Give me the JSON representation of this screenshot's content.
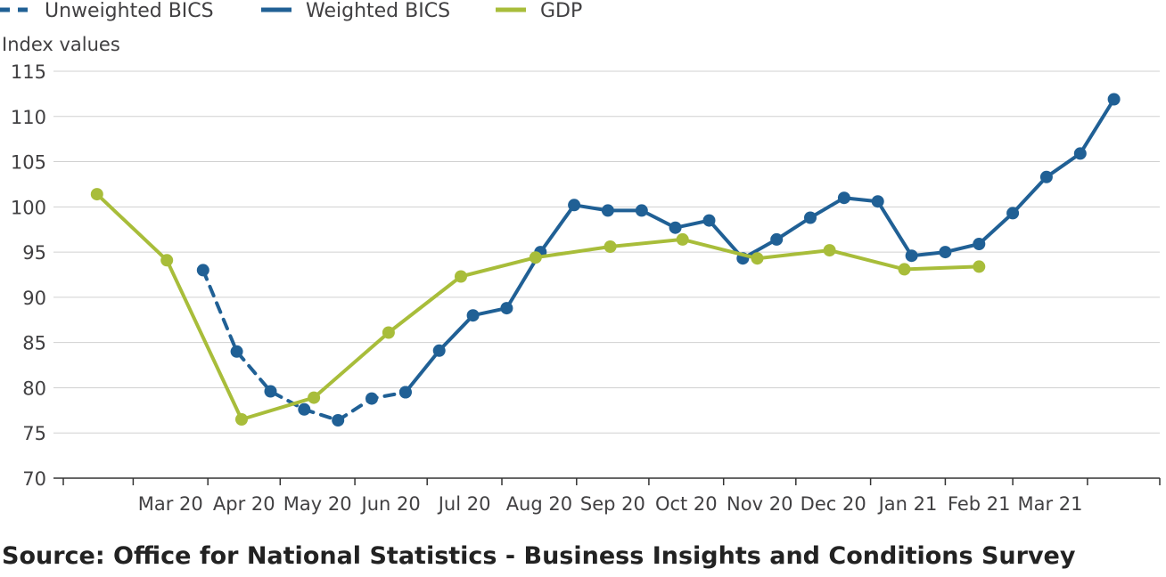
{
  "chart_data": {
    "type": "line",
    "title": "",
    "xlabel": "",
    "ylabel": "Index values",
    "ylim": [
      70,
      115
    ],
    "yticks": [
      70,
      75,
      80,
      85,
      90,
      95,
      100,
      105,
      110,
      115
    ],
    "grid": "horizontal",
    "legend_position": "top-left",
    "x_ticks": [
      "Mar 20",
      "Apr 20",
      "May 20",
      "Jun 20",
      "Jul 20",
      "Aug 20",
      "Sep 20",
      "Oct 20",
      "Nov 20",
      "Dec 20",
      "Jan 21",
      "Feb 21",
      "Mar 21"
    ],
    "series": [
      {
        "name": "Unweighted BICS",
        "color": "#206095",
        "style": "dashed",
        "points": [
          {
            "x": "2020-03-30",
            "y": 93.0
          },
          {
            "x": "2020-04-13",
            "y": 84.0
          },
          {
            "x": "2020-04-27",
            "y": 79.6
          },
          {
            "x": "2020-05-11",
            "y": 77.6
          },
          {
            "x": "2020-05-25",
            "y": 76.4
          },
          {
            "x": "2020-06-08",
            "y": 78.8
          },
          {
            "x": "2020-06-22",
            "y": 79.5
          }
        ]
      },
      {
        "name": "Weighted BICS",
        "color": "#206095",
        "style": "solid",
        "points": [
          {
            "x": "2020-06-22",
            "y": 79.5
          },
          {
            "x": "2020-07-06",
            "y": 84.1
          },
          {
            "x": "2020-07-20",
            "y": 88.0
          },
          {
            "x": "2020-08-03",
            "y": 88.8
          },
          {
            "x": "2020-08-17",
            "y": 95.0
          },
          {
            "x": "2020-08-31",
            "y": 100.2
          },
          {
            "x": "2020-09-14",
            "y": 99.6
          },
          {
            "x": "2020-09-28",
            "y": 99.6
          },
          {
            "x": "2020-10-12",
            "y": 97.7
          },
          {
            "x": "2020-10-26",
            "y": 98.5
          },
          {
            "x": "2020-11-09",
            "y": 94.3
          },
          {
            "x": "2020-11-23",
            "y": 96.4
          },
          {
            "x": "2020-12-07",
            "y": 98.8
          },
          {
            "x": "2020-12-21",
            "y": 101.0
          },
          {
            "x": "2021-01-04",
            "y": 100.6
          },
          {
            "x": "2021-01-18",
            "y": 94.6
          },
          {
            "x": "2021-02-01",
            "y": 95.0
          },
          {
            "x": "2021-02-15",
            "y": 95.9
          },
          {
            "x": "2021-03-01",
            "y": 99.3
          },
          {
            "x": "2021-03-15",
            "y": 103.3
          },
          {
            "x": "2021-03-29",
            "y": 105.9
          },
          {
            "x": "2021-04-12",
            "y": 111.9
          }
        ]
      },
      {
        "name": "GDP",
        "color": "#a8bd3a",
        "style": "solid",
        "points": [
          {
            "x": "2020-02-15",
            "y": 101.4
          },
          {
            "x": "2020-03-15",
            "y": 94.1
          },
          {
            "x": "2020-04-15",
            "y": 76.5
          },
          {
            "x": "2020-05-15",
            "y": 78.9
          },
          {
            "x": "2020-06-15",
            "y": 86.1
          },
          {
            "x": "2020-07-15",
            "y": 92.3
          },
          {
            "x": "2020-08-15",
            "y": 94.4
          },
          {
            "x": "2020-09-15",
            "y": 95.6
          },
          {
            "x": "2020-10-15",
            "y": 96.4
          },
          {
            "x": "2020-11-15",
            "y": 94.3
          },
          {
            "x": "2020-12-15",
            "y": 95.2
          },
          {
            "x": "2021-01-15",
            "y": 93.1
          },
          {
            "x": "2021-02-15",
            "y": 93.4
          }
        ]
      }
    ]
  },
  "source": "Source: Office for National Statistics - Business Insights and Conditions Survey"
}
